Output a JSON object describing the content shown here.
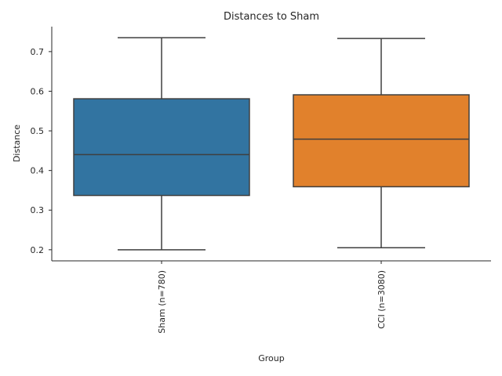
{
  "chart_data": {
    "type": "box",
    "title": "Distances to Sham",
    "xlabel": "Group",
    "ylabel": "Distance",
    "ylim": [
      0.172,
      0.763
    ],
    "yticks": [
      0.2,
      0.3,
      0.4,
      0.5,
      0.6,
      0.7
    ],
    "ytick_labels": [
      "0.2",
      "0.3",
      "0.4",
      "0.5",
      "0.6",
      "0.7"
    ],
    "grid": false,
    "categories": [
      "Sham (n=780)",
      "CCI (n=3080)"
    ],
    "boxes": [
      {
        "category": "Sham (n=780)",
        "whisker_low": 0.2,
        "q1": 0.337,
        "median": 0.44,
        "q3": 0.581,
        "whisker_high": 0.735,
        "color": "#3274a1"
      },
      {
        "category": "CCI (n=3080)",
        "whisker_low": 0.205,
        "q1": 0.359,
        "median": 0.479,
        "q3": 0.591,
        "whisker_high": 0.733,
        "color": "#e1812c"
      }
    ]
  }
}
